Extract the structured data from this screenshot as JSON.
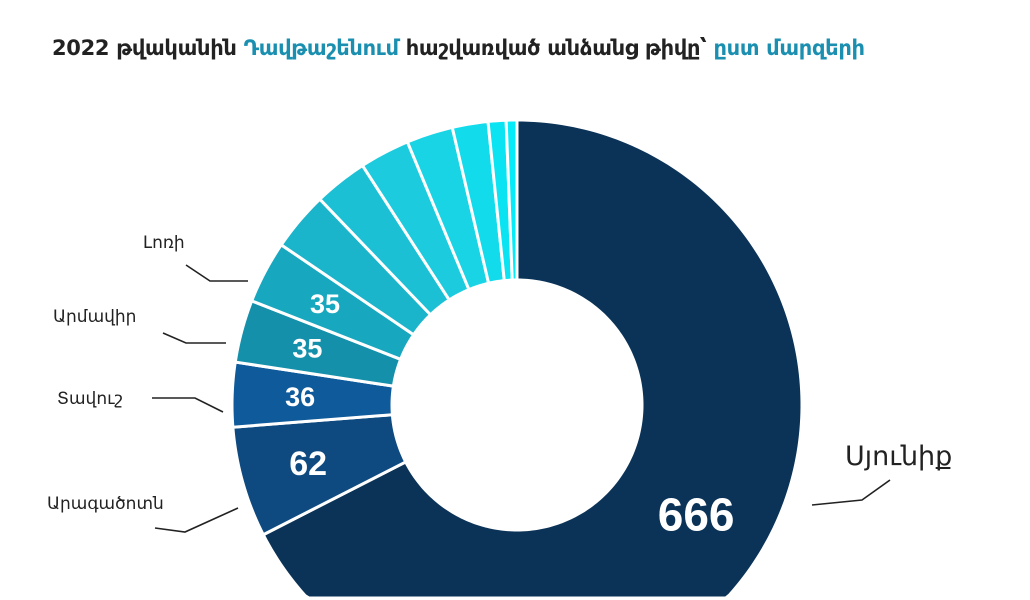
{
  "title": {
    "part1": "2022 թվականին ",
    "highlight1": "Դավթաշենում",
    "part2": " հաշվառված անձանց թիվը՝ ",
    "highlight2": "ըստ մարզերի"
  },
  "chart_data": {
    "type": "pie",
    "donut": true,
    "title": "2022 թվականին Դավթաշենում հաշվառված անձանց թիվը՝ ըստ մարզերի",
    "slices": [
      {
        "label": "Սյունիք",
        "value": 666,
        "color": "#0b3358",
        "show_value": true
      },
      {
        "label": "Արագածոտն",
        "value": 62,
        "color": "#0e4a80",
        "show_value": true
      },
      {
        "label": "Տավուշ",
        "value": 36,
        "color": "#0f5a9a",
        "show_value": true
      },
      {
        "label": "Արմավիր",
        "value": 35,
        "color": "#1590ab",
        "show_value": true
      },
      {
        "label": "Լոռի",
        "value": 35,
        "color": "#17a7bf",
        "show_value": true
      },
      {
        "label": "",
        "value": 33,
        "color": "#1ab4cb",
        "show_value": false
      },
      {
        "label": "",
        "value": 30,
        "color": "#1cc0d5",
        "show_value": false
      },
      {
        "label": "",
        "value": 28,
        "color": "#1ccbdd",
        "show_value": false
      },
      {
        "label": "",
        "value": 26,
        "color": "#18d4e5",
        "show_value": false
      },
      {
        "label": "",
        "value": 20,
        "color": "#12dcec",
        "show_value": false
      },
      {
        "label": "",
        "value": 10,
        "color": "#0ae4f2",
        "show_value": false
      },
      {
        "label": "",
        "value": 6,
        "color": "#05ecf8",
        "show_value": false
      }
    ],
    "start": "top",
    "direction": "clockwise",
    "legend": "none"
  }
}
